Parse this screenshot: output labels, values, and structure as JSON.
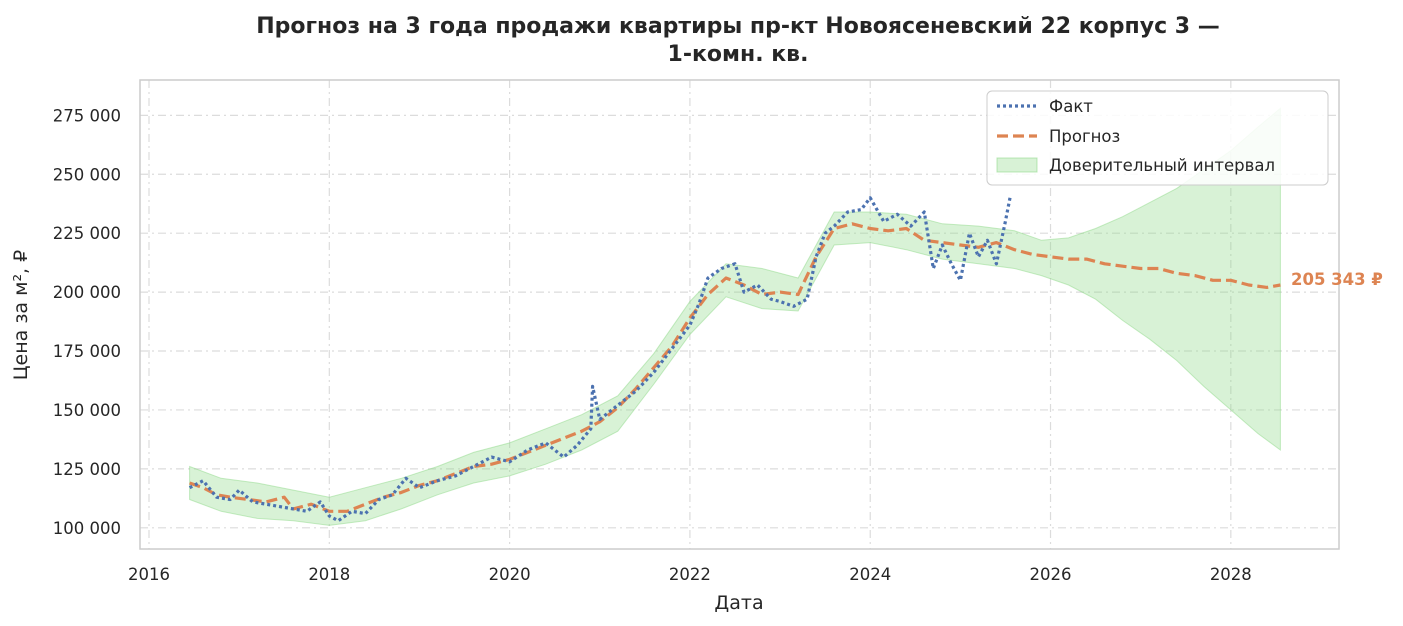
{
  "chart_data": {
    "type": "line",
    "title_lines": [
      "Прогноз на 3 года продажи квартиры  пр-кт Новоясеневский 22 корпус 3 —",
      "1-комн. кв."
    ],
    "xlabel": "Дата",
    "ylabel": "Цена за м², ₽",
    "xlim": [
      2015.9,
      2029.2
    ],
    "ylim": [
      91000,
      290000
    ],
    "x_ticks": [
      2016,
      2018,
      2020,
      2022,
      2024,
      2026,
      2028
    ],
    "x_tick_labels": [
      "2016",
      "2018",
      "2020",
      "2022",
      "2024",
      "2026",
      "2028"
    ],
    "y_ticks": [
      100000,
      125000,
      150000,
      175000,
      200000,
      225000,
      250000,
      275000
    ],
    "y_tick_labels": [
      "100 000",
      "125 000",
      "150 000",
      "175 000",
      "200 000",
      "225 000",
      "250 000",
      "275 000"
    ],
    "grid": true,
    "legend_position": "top-right",
    "legend": [
      "Факт",
      "Прогноз",
      "Доверительный интервал"
    ],
    "colors": {
      "fact": "#4c72b0",
      "forecast": "#dd8452",
      "interval": "#8fd989",
      "grid": "#dcdcdc",
      "frame": "#cccccc"
    },
    "end_label": "205 343 ₽",
    "series": [
      {
        "name": "Факт",
        "style": "dotted",
        "x": [
          2016.45,
          2016.6,
          2016.75,
          2016.9,
          2017.0,
          2017.15,
          2017.3,
          2017.45,
          2017.6,
          2017.75,
          2017.9,
          2018.0,
          2018.1,
          2018.25,
          2018.4,
          2018.55,
          2018.7,
          2018.85,
          2019.0,
          2019.2,
          2019.4,
          2019.6,
          2019.8,
          2020.0,
          2020.2,
          2020.4,
          2020.6,
          2020.75,
          2020.9,
          2020.92,
          2021.0,
          2021.2,
          2021.4,
          2021.6,
          2021.8,
          2022.0,
          2022.1,
          2022.2,
          2022.35,
          2022.5,
          2022.6,
          2022.75,
          2022.9,
          2023.0,
          2023.15,
          2023.3,
          2023.4,
          2023.5,
          2023.6,
          2023.75,
          2023.9,
          2024.0,
          2024.15,
          2024.3,
          2024.45,
          2024.6,
          2024.7,
          2024.8,
          2024.9,
          2025.0,
          2025.1,
          2025.2,
          2025.3,
          2025.4,
          2025.5,
          2025.55
        ],
        "y": [
          117000,
          120000,
          113000,
          112000,
          116000,
          111000,
          110000,
          109000,
          108000,
          107000,
          111000,
          105000,
          103000,
          107000,
          106000,
          112000,
          114000,
          121000,
          117000,
          120000,
          122000,
          126000,
          130000,
          128000,
          133000,
          136000,
          130000,
          135000,
          142000,
          160000,
          146000,
          152000,
          158000,
          166000,
          176000,
          186000,
          195000,
          206000,
          210000,
          212000,
          200000,
          203000,
          197000,
          196000,
          194000,
          197000,
          215000,
          225000,
          228000,
          234000,
          235000,
          240000,
          230000,
          233000,
          228000,
          234000,
          210000,
          220000,
          212000,
          205000,
          225000,
          215000,
          222000,
          212000,
          230000,
          240000
        ]
      },
      {
        "name": "Прогноз",
        "style": "dashed",
        "x": [
          2016.45,
          2016.6,
          2016.75,
          2016.9,
          2017.1,
          2017.3,
          2017.5,
          2017.6,
          2017.8,
          2018.0,
          2018.2,
          2018.4,
          2018.6,
          2018.8,
          2019.0,
          2019.2,
          2019.4,
          2019.6,
          2019.8,
          2020.0,
          2020.2,
          2020.4,
          2020.6,
          2020.8,
          2021.0,
          2021.2,
          2021.4,
          2021.6,
          2021.8,
          2022.0,
          2022.2,
          2022.4,
          2022.6,
          2022.8,
          2023.0,
          2023.2,
          2023.4,
          2023.6,
          2023.8,
          2024.0,
          2024.2,
          2024.4,
          2024.6,
          2024.8,
          2025.0,
          2025.2,
          2025.4,
          2025.6,
          2025.8,
          2026.0,
          2026.2,
          2026.4,
          2026.6,
          2026.8,
          2027.0,
          2027.2,
          2027.4,
          2027.6,
          2027.8,
          2028.0,
          2028.2,
          2028.4,
          2028.55
        ],
        "y": [
          119000,
          117000,
          114000,
          113000,
          112000,
          111000,
          113000,
          108000,
          110000,
          107000,
          107000,
          110000,
          113000,
          115000,
          118000,
          120000,
          123000,
          126000,
          127000,
          129000,
          132000,
          135000,
          138000,
          141000,
          145000,
          151000,
          159000,
          168000,
          177000,
          189000,
          199000,
          206000,
          203000,
          199000,
          200000,
          199000,
          215000,
          227000,
          229000,
          227000,
          226000,
          227000,
          222000,
          221000,
          220000,
          219000,
          221000,
          218000,
          216000,
          215000,
          214000,
          214000,
          212000,
          211000,
          210000,
          210000,
          208000,
          207000,
          205000,
          205000,
          203000,
          202000,
          203000
        ]
      }
    ],
    "interval": {
      "name": "Доверительный интервал",
      "x": [
        2016.45,
        2016.8,
        2017.2,
        2017.6,
        2018.0,
        2018.4,
        2018.8,
        2019.2,
        2019.6,
        2020.0,
        2020.4,
        2020.8,
        2021.2,
        2021.6,
        2022.0,
        2022.4,
        2022.8,
        2023.2,
        2023.6,
        2024.0,
        2024.4,
        2024.8,
        2025.2,
        2025.6,
        2025.9,
        2026.2,
        2026.5,
        2026.8,
        2027.1,
        2027.4,
        2027.7,
        2028.0,
        2028.3,
        2028.55
      ],
      "upper": [
        126000,
        121000,
        119000,
        116000,
        113000,
        117000,
        121000,
        126000,
        132000,
        136000,
        142000,
        148000,
        156000,
        174000,
        196000,
        212000,
        210000,
        206000,
        234000,
        234000,
        233000,
        229000,
        228000,
        226000,
        222000,
        223000,
        227000,
        232000,
        238000,
        244000,
        252000,
        260000,
        270000,
        278000
      ],
      "lower": [
        112000,
        107000,
        104000,
        103000,
        101000,
        103000,
        108000,
        114000,
        119000,
        122000,
        127000,
        133000,
        141000,
        161000,
        182000,
        198000,
        193000,
        192000,
        220000,
        221000,
        218000,
        214000,
        212000,
        210000,
        207000,
        203000,
        197000,
        188000,
        180000,
        171000,
        160000,
        150000,
        140000,
        133000
      ]
    }
  }
}
